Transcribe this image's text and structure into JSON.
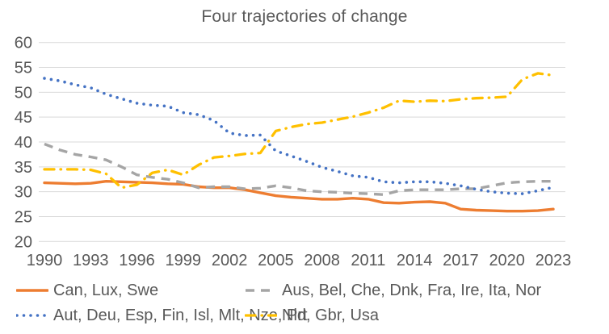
{
  "title": "Four trajectories of change",
  "colors": {
    "accent_orange": "#ED7D31",
    "accent_gray": "#A5A5A5",
    "accent_blue": "#4472C4",
    "accent_yellow": "#FFC000",
    "gridline": "#D9D9D9",
    "text": "#595959"
  },
  "chart_data": {
    "type": "line",
    "title": "Four trajectories of change",
    "xlabel": "",
    "ylabel": "",
    "ylim": [
      20,
      60
    ],
    "y_ticks": [
      20,
      25,
      30,
      35,
      40,
      45,
      50,
      55,
      60
    ],
    "y_tick_labels": [
      "20",
      "25",
      "30",
      "35",
      "40",
      "45",
      "50",
      "55",
      "60"
    ],
    "x": [
      1990,
      1991,
      1992,
      1993,
      1994,
      1995,
      1996,
      1997,
      1998,
      1999,
      2000,
      2001,
      2002,
      2003,
      2004,
      2005,
      2006,
      2007,
      2008,
      2009,
      2010,
      2011,
      2012,
      2013,
      2014,
      2015,
      2016,
      2017,
      2018,
      2019,
      2020,
      2021,
      2022,
      2023
    ],
    "x_tick_labels": [
      "1990",
      "1993",
      "1996",
      "1999",
      "2002",
      "2005",
      "2008",
      "2011",
      "2014",
      "2017",
      "2020",
      "2023"
    ],
    "grid": "horizontal-only",
    "legend_position": "bottom",
    "series": [
      {
        "name": "Can, Lux, Swe",
        "color": "#ED7D31",
        "style": "solid",
        "values": [
          31.8,
          31.7,
          31.6,
          31.7,
          32.1,
          32.0,
          31.9,
          31.8,
          31.6,
          31.5,
          31.0,
          30.8,
          30.8,
          30.4,
          29.8,
          29.2,
          28.9,
          28.7,
          28.5,
          28.5,
          28.7,
          28.5,
          27.8,
          27.7,
          27.9,
          28.0,
          27.7,
          26.5,
          26.3,
          26.2,
          26.1,
          26.1,
          26.2,
          26.5
        ]
      },
      {
        "name": "Aus, Bel, Che, Dnk, Fra, Ire, Ita, Nor",
        "color": "#A5A5A5",
        "style": "dashed",
        "values": [
          39.6,
          38.4,
          37.5,
          37.0,
          36.4,
          35.0,
          33.4,
          32.9,
          32.5,
          31.8,
          30.8,
          31.0,
          31.0,
          30.6,
          30.7,
          31.2,
          30.8,
          30.2,
          30.0,
          29.9,
          29.7,
          29.6,
          29.4,
          30.2,
          30.4,
          30.4,
          30.4,
          30.6,
          30.6,
          31.2,
          31.8,
          32.0,
          32.1,
          32.1
        ]
      },
      {
        "name": "Aut, Deu, Esp, Fin, Isl, Mlt, Nze, Prt",
        "color": "#4472C4",
        "style": "dotted",
        "values": [
          52.8,
          52.3,
          51.5,
          50.9,
          49.6,
          48.7,
          47.8,
          47.4,
          47.2,
          45.9,
          45.5,
          44.3,
          41.8,
          41.3,
          41.4,
          38.2,
          37.2,
          36.1,
          34.9,
          34.1,
          33.2,
          32.9,
          32.0,
          31.8,
          32.0,
          32.0,
          31.7,
          31.2,
          30.5,
          30.0,
          29.7,
          29.6,
          30.2,
          30.9
        ]
      },
      {
        "name": "Nld, Gbr, Usa",
        "color": "#FFC000",
        "style": "dash-dot",
        "values": [
          34.5,
          34.5,
          34.5,
          34.4,
          33.6,
          30.8,
          31.4,
          33.8,
          34.4,
          33.4,
          35.4,
          36.9,
          37.2,
          37.6,
          37.8,
          42.2,
          43.0,
          43.6,
          43.9,
          44.5,
          45.1,
          45.9,
          46.9,
          48.3,
          48.1,
          48.3,
          48.2,
          48.6,
          48.8,
          48.9,
          49.1,
          52.6,
          53.8,
          53.4
        ]
      }
    ]
  },
  "legend": {
    "items": [
      {
        "label": "Can, Lux, Swe",
        "series_index": 0
      },
      {
        "label": "Aus, Bel, Che, Dnk, Fra, Ire, Ita, Nor",
        "series_index": 1
      },
      {
        "label": "Aut, Deu, Esp, Fin, Isl, Mlt, Nze, Prt",
        "series_index": 2
      },
      {
        "label": "Nld, Gbr, Usa",
        "series_index": 3
      }
    ]
  }
}
